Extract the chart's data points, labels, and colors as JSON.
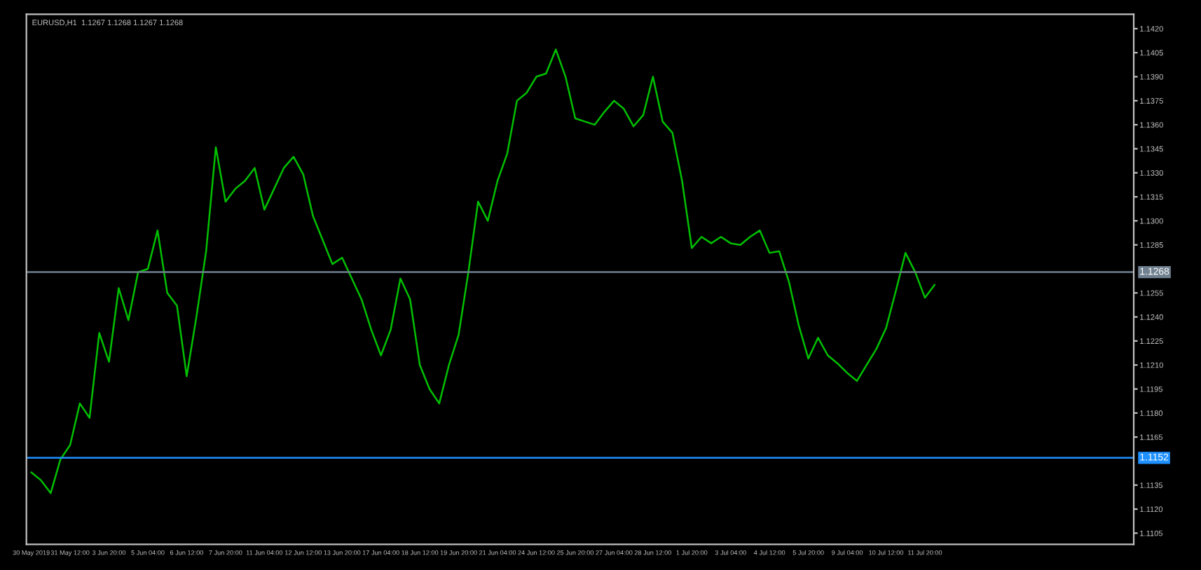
{
  "chart_data": {
    "type": "line",
    "title": "EURUSD,H1  1.1267 1.1268 1.1267 1.1268",
    "categories": [
      "30 May 2019",
      null,
      null,
      null,
      "31 May 12:00",
      null,
      null,
      null,
      "3 Jun 20:00",
      null,
      null,
      null,
      "5 Jun 04:00",
      null,
      null,
      null,
      "6 Jun 12:00",
      null,
      null,
      null,
      "7 Jun 20:00",
      null,
      null,
      null,
      "11 Jun 04:00",
      null,
      null,
      null,
      "12 Jun 12:00",
      null,
      null,
      null,
      "13 Jun 20:00",
      null,
      null,
      null,
      "17 Jun 04:00",
      null,
      null,
      null,
      "18 Jun 12:00",
      null,
      null,
      null,
      "19 Jun 20:00",
      null,
      null,
      null,
      "21 Jun 04:00",
      null,
      null,
      null,
      "24 Jun 12:00",
      null,
      null,
      null,
      "25 Jun 20:00",
      null,
      null,
      null,
      "27 Jun 04:00",
      null,
      null,
      null,
      "28 Jun 12:00",
      null,
      null,
      null,
      "1 Jul 20:00",
      null,
      null,
      null,
      "3 Jul 04:00",
      null,
      null,
      null,
      "4 Jul 12:00",
      null,
      null,
      null,
      "5 Jul 20:00",
      null,
      null,
      null,
      "9 Jul 04:00",
      null,
      null,
      null,
      "10 Jul 12:00",
      null,
      null,
      null,
      "11 Jul 20:00",
      null,
      null,
      null,
      null,
      null,
      null,
      null,
      null,
      null,
      null,
      null,
      null,
      null,
      null,
      null,
      null,
      null,
      null,
      null,
      null,
      null
    ],
    "series": [
      {
        "color": "#00c000",
        "values": [
          1.1143,
          1.1138,
          1.113,
          1.1151,
          1.116,
          1.1186,
          1.1177,
          1.123,
          1.1212,
          1.1258,
          1.1238,
          1.1268,
          1.127,
          1.1294,
          1.1255,
          1.1247,
          1.1203,
          1.124,
          1.1281,
          1.1346,
          1.1312,
          1.132,
          1.1325,
          1.1333,
          1.1307,
          1.132,
          1.1333,
          1.134,
          1.1329,
          1.1303,
          1.1288,
          1.1273,
          1.1277,
          1.1264,
          1.1251,
          1.1232,
          1.1216,
          1.1232,
          1.1264,
          1.1251,
          1.121,
          1.1195,
          1.1186,
          1.121,
          1.1229,
          1.1268,
          1.1312,
          1.13,
          1.1325,
          1.1342,
          1.1375,
          1.138,
          1.139,
          1.1392,
          1.1407,
          1.139,
          1.1364,
          1.1362,
          1.136,
          1.1368,
          1.1375,
          1.137,
          1.1359,
          1.1366,
          1.139,
          1.1362,
          1.1355,
          1.1325,
          1.1283,
          1.129,
          1.1286,
          1.129,
          1.1286,
          1.1285,
          1.129,
          1.1294,
          1.128,
          1.1281,
          1.1262,
          1.1235,
          1.1214,
          1.1227,
          1.1216,
          1.1211,
          1.1205,
          1.12,
          1.121,
          1.122,
          1.1233,
          1.1256,
          1.128,
          1.1268,
          1.1252,
          1.126,
          null,
          null,
          null,
          null,
          null,
          null,
          null,
          null,
          null,
          null,
          null,
          null,
          null,
          null,
          null,
          null,
          null,
          null,
          null,
          null
        ]
      }
    ],
    "ylim": [
      1.1098,
      1.1429
    ],
    "yticks": [
      {
        "value": 1.1105,
        "label": "1.1105"
      },
      {
        "value": 1.112,
        "label": "1.1120"
      },
      {
        "value": 1.1135,
        "label": "1.1135"
      },
      {
        "value": 1.1165,
        "label": "1.1165"
      },
      {
        "value": 1.118,
        "label": "1.1180"
      },
      {
        "value": 1.1195,
        "label": "1.1195"
      },
      {
        "value": 1.121,
        "label": "1.1210"
      },
      {
        "value": 1.1225,
        "label": "1.1225"
      },
      {
        "value": 1.124,
        "label": "1.1240"
      },
      {
        "value": 1.1255,
        "label": "1.1255"
      },
      {
        "value": 1.1285,
        "label": "1.1285"
      },
      {
        "value": 1.13,
        "label": "1.1300"
      },
      {
        "value": 1.1315,
        "label": "1.1315"
      },
      {
        "value": 1.133,
        "label": "1.1330"
      },
      {
        "value": 1.1345,
        "label": "1.1345"
      },
      {
        "value": 1.136,
        "label": "1.1360"
      },
      {
        "value": 1.1375,
        "label": "1.1375"
      },
      {
        "value": 1.139,
        "label": "1.1390"
      },
      {
        "value": 1.1405,
        "label": "1.1405"
      },
      {
        "value": 1.142,
        "label": "1.1420"
      }
    ],
    "ref_lines": [
      {
        "axis": "y",
        "value": 1.1268,
        "label": "1.1268",
        "color": "#708090"
      },
      {
        "axis": "y",
        "value": 1.1152,
        "label": "1.1152",
        "color": "#1e90ff"
      }
    ],
    "grid": false,
    "legend": false,
    "line_style": "solid",
    "marker": "none"
  }
}
